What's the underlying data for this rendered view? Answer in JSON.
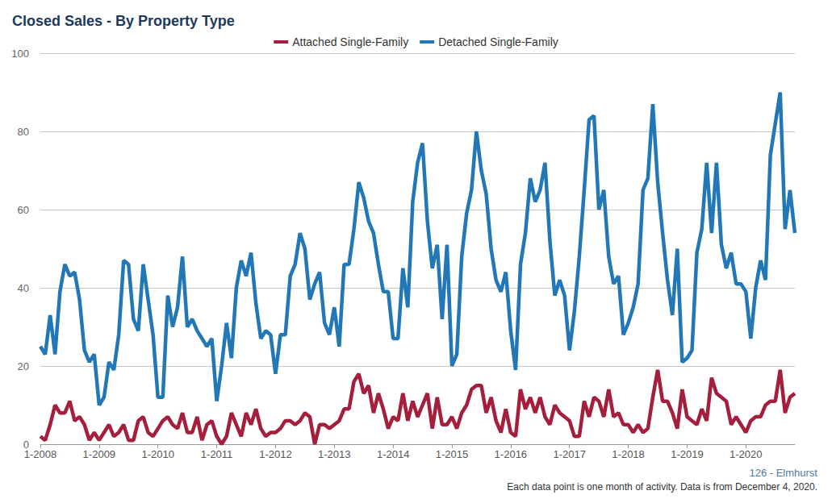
{
  "chart_data": {
    "type": "line",
    "title": "Closed Sales - By Property Type",
    "annotations": [
      "126 - Elmhurst",
      "Each data point is one month of activity. Data is from December 4, 2020."
    ],
    "categories": [
      "1-2008",
      null,
      null,
      null,
      null,
      null,
      null,
      null,
      null,
      null,
      null,
      null,
      "1-2009",
      null,
      null,
      null,
      null,
      null,
      null,
      null,
      null,
      null,
      null,
      null,
      "1-2010",
      null,
      null,
      null,
      null,
      null,
      null,
      null,
      null,
      null,
      null,
      null,
      "1-2011",
      null,
      null,
      null,
      null,
      null,
      null,
      null,
      null,
      null,
      null,
      null,
      "1-2012",
      null,
      null,
      null,
      null,
      null,
      null,
      null,
      null,
      null,
      null,
      null,
      "1-2013",
      null,
      null,
      null,
      null,
      null,
      null,
      null,
      null,
      null,
      null,
      null,
      "1-2014",
      null,
      null,
      null,
      null,
      null,
      null,
      null,
      null,
      null,
      null,
      null,
      "1-2015",
      null,
      null,
      null,
      null,
      null,
      null,
      null,
      null,
      null,
      null,
      null,
      "1-2016",
      null,
      null,
      null,
      null,
      null,
      null,
      null,
      null,
      null,
      null,
      null,
      "1-2017",
      null,
      null,
      null,
      null,
      null,
      null,
      null,
      null,
      null,
      null,
      null,
      "1-2018",
      null,
      null,
      null,
      null,
      null,
      null,
      null,
      null,
      null,
      null,
      null,
      "1-2019",
      null,
      null,
      null,
      null,
      null,
      null,
      null,
      null,
      null,
      null,
      null,
      "1-2020",
      null,
      null,
      null,
      null,
      null,
      null,
      null,
      null,
      null,
      null
    ],
    "series": [
      {
        "name": "Attached Single-Family",
        "color": "#a51f3d",
        "values": [
          2,
          1,
          5,
          10,
          8,
          8,
          11,
          6,
          7,
          5,
          1,
          3,
          1,
          3,
          5,
          2,
          3,
          5,
          1,
          1,
          6,
          7,
          3,
          2,
          4,
          6,
          7,
          5,
          4,
          8,
          3,
          3,
          7,
          1,
          5,
          6,
          2,
          0,
          2,
          8,
          5,
          2,
          8,
          5,
          9,
          4,
          2,
          3,
          3,
          4,
          6,
          6,
          5,
          6,
          8,
          7,
          0,
          5,
          5,
          4,
          5,
          6,
          9,
          9,
          16,
          18,
          13,
          15,
          8,
          13,
          9,
          4,
          7,
          6,
          13,
          6,
          11,
          7,
          10,
          13,
          4,
          12,
          5,
          5,
          7,
          4,
          8,
          10,
          14,
          15,
          15,
          8,
          12,
          6,
          3,
          9,
          3,
          2,
          14,
          9,
          12,
          8,
          12,
          7,
          5,
          10,
          8,
          7,
          6,
          2,
          2,
          11,
          7,
          12,
          11,
          7,
          14,
          7,
          8,
          5,
          5,
          3,
          5,
          3,
          4,
          12,
          19,
          11,
          11,
          8,
          4,
          14,
          7,
          6,
          5,
          9,
          6,
          17,
          13,
          12,
          11,
          5,
          7,
          5,
          3,
          6,
          7,
          7,
          10,
          11,
          11,
          19,
          8,
          12,
          13
        ]
      },
      {
        "name": "Detached Single-Family",
        "color": "#2277b6",
        "values": [
          25,
          23,
          33,
          23,
          39,
          46,
          43,
          44,
          37,
          24,
          21,
          23,
          10,
          12,
          21,
          19,
          28,
          47,
          46,
          32,
          29,
          46,
          37,
          28,
          12,
          12,
          38,
          30,
          35,
          48,
          30,
          32,
          29,
          27,
          25,
          27,
          11,
          20,
          31,
          22,
          40,
          47,
          43,
          49,
          36,
          27,
          29,
          28,
          18,
          28,
          28,
          43,
          46,
          54,
          50,
          37,
          41,
          44,
          31,
          28,
          35,
          25,
          46,
          46,
          55,
          67,
          63,
          57,
          54,
          46,
          39,
          39,
          27,
          27,
          45,
          35,
          62,
          72,
          77,
          57,
          45,
          51,
          32,
          51,
          20,
          23,
          48,
          59,
          65,
          80,
          70,
          64,
          50,
          42,
          39,
          44,
          29,
          19,
          46,
          54,
          68,
          62,
          65,
          72,
          52,
          38,
          42,
          38,
          24,
          34,
          48,
          65,
          83,
          84,
          60,
          65,
          48,
          41,
          43,
          28,
          31,
          35,
          41,
          65,
          68,
          87,
          67,
          54,
          42,
          33,
          50,
          21,
          22,
          24,
          49,
          55,
          72,
          54,
          72,
          51,
          45,
          49,
          41,
          41,
          39,
          27,
          40,
          47,
          42,
          74,
          82,
          90,
          55,
          65,
          54
        ]
      }
    ],
    "ylim": [
      0,
      100
    ],
    "yticks": [
      0,
      20,
      40,
      60,
      80,
      100
    ],
    "grid": true,
    "legend": "top"
  }
}
